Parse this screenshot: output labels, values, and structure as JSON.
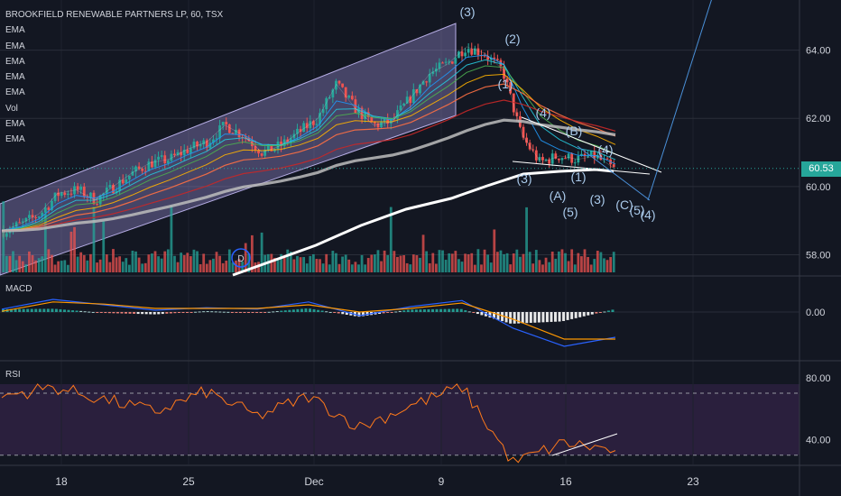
{
  "header": {
    "title": "BROOKFIELD RENEWABLE PARTNERS LP, 60, TSX",
    "indicators": [
      "EMA",
      "EMA",
      "EMA",
      "EMA",
      "EMA",
      "Vol",
      "EMA",
      "EMA"
    ]
  },
  "last_price": "60.53",
  "chart_data": [
    {
      "type": "line",
      "pane": "price",
      "title": "BROOKFIELD RENEWABLE PARTNERS LP, 60, TSX",
      "xlabel": "",
      "ylabel": "",
      "x_ticks": [
        "18",
        "25",
        "Dec",
        "9",
        "16",
        "23"
      ],
      "y_ticks": [
        "64.00",
        "62.00",
        "60.00",
        "58.00"
      ],
      "ylim": [
        57.8,
        65.1
      ],
      "last_price": 60.53,
      "series": [
        {
          "x": [
            "Nov 15",
            "Nov 16",
            "Nov 17",
            "Nov 18",
            "Nov 19",
            "Nov 20",
            "Nov 21",
            "Nov 22",
            "Nov 23",
            "Nov 24",
            "Nov 25",
            "Nov 26",
            "Nov 27",
            "Nov 28",
            "Nov 29",
            "Nov 30",
            "Dec 1",
            "Dec 2",
            "Dec 3",
            "Dec 4",
            "Dec 5",
            "Dec 6",
            "Dec 7",
            "Dec 8",
            "Dec 9",
            "Dec 10",
            "Dec 11",
            "Dec 12",
            "Dec 13",
            "Dec 14",
            "Dec 15",
            "Dec 16",
            "Dec 17",
            "Dec 18"
          ],
          "values": [
            58.7,
            58.9,
            59.2,
            59.8,
            59.9,
            59.6,
            60.0,
            60.4,
            60.7,
            60.8,
            61.1,
            61.3,
            61.8,
            61.5,
            61.0,
            61.2,
            61.6,
            62.0,
            63.0,
            62.3,
            61.8,
            61.9,
            62.6,
            63.3,
            63.6,
            64.1,
            63.9,
            63.4,
            61.5,
            60.7,
            60.9,
            60.8,
            60.9,
            60.5
          ]
        }
      ],
      "annotations": [
        "(3)",
        "(2)",
        "(1)",
        "(4)",
        "(B)",
        "(4)",
        "(3)",
        "(A)",
        "(5)",
        "(1)",
        "(3)",
        "(C)",
        "(5)",
        "(4)",
        "D"
      ]
    },
    {
      "type": "line",
      "pane": "MACD",
      "title": "MACD",
      "y_ticks": [
        "0.00"
      ],
      "x": [
        "Nov 15",
        "Nov 18",
        "Nov 21",
        "Nov 24",
        "Nov 27",
        "Nov 30",
        "Dec 3",
        "Dec 6",
        "Dec 9",
        "Dec 12",
        "Dec 14",
        "Dec 16",
        "Dec 18"
      ],
      "series": [
        {
          "values": [
            0.08,
            0.35,
            0.2,
            0.05,
            0.12,
            0.08,
            0.28,
            -0.1,
            0.15,
            0.32,
            -0.45,
            -0.95,
            -0.7
          ]
        },
        {
          "values": [
            0.02,
            0.28,
            0.22,
            0.1,
            0.1,
            0.1,
            0.2,
            0.0,
            0.1,
            0.25,
            -0.2,
            -0.75,
            -0.75
          ]
        }
      ]
    },
    {
      "type": "line",
      "pane": "RSI",
      "title": "RSI",
      "y_ticks": [
        "80.00",
        "40.00"
      ],
      "ylim": [
        24,
        84
      ],
      "bands": [
        70,
        30
      ],
      "series": [
        {
          "values": [
            68,
            74,
            66,
            58,
            71,
            55,
            68,
            48,
            62,
            74,
            25,
            38,
            33
          ]
        }
      ]
    }
  ]
}
